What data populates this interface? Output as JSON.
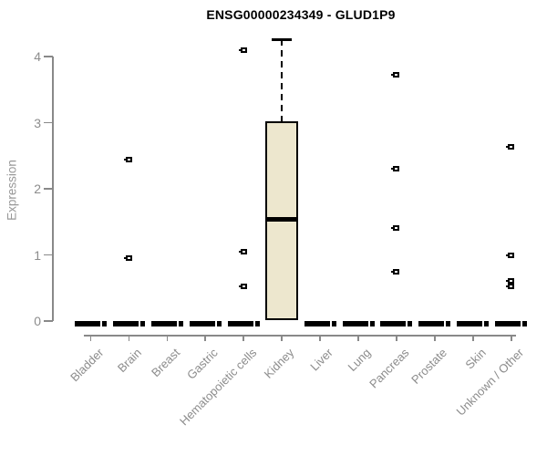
{
  "title": "ENSG00000234349 - GLUD1P9",
  "colors": {
    "box_fill": "#EDE7CE",
    "box_border": "#000000",
    "axis": "#898989",
    "tick_label": "#8C8C8C",
    "title_color": "#000000"
  },
  "chart_data": {
    "type": "boxplot",
    "title": "ENSG00000234349 - GLUD1P9",
    "xlabel": "",
    "ylabel": "Expression",
    "ylim": [
      0,
      4.3
    ],
    "y_ticks": [
      0,
      1,
      2,
      3,
      4
    ],
    "grid": false,
    "legend": "none",
    "categories": [
      "Bladder",
      "Brain",
      "Breast",
      "Gastric",
      "Hematopoietic cells",
      "Kidney",
      "Liver",
      "Lung",
      "Pancreas",
      "Prostate",
      "Skin",
      "Unknown / Other"
    ],
    "groups": [
      {
        "category": "Bladder",
        "q1": 0,
        "median": 0,
        "q3": 0,
        "whisker_low": 0,
        "whisker_high": 0,
        "outliers": []
      },
      {
        "category": "Brain",
        "q1": 0,
        "median": 0,
        "q3": 0,
        "whisker_low": 0,
        "whisker_high": 0,
        "outliers": [
          2.44,
          0.95
        ]
      },
      {
        "category": "Breast",
        "q1": 0,
        "median": 0,
        "q3": 0,
        "whisker_low": 0,
        "whisker_high": 0,
        "outliers": []
      },
      {
        "category": "Gastric",
        "q1": 0,
        "median": 0,
        "q3": 0,
        "whisker_low": 0,
        "whisker_high": 0,
        "outliers": []
      },
      {
        "category": "Hematopoietic cells",
        "q1": 0,
        "median": 0,
        "q3": 0,
        "whisker_low": 0,
        "whisker_high": 0,
        "outliers": [
          4.1,
          1.05,
          0.52
        ]
      },
      {
        "category": "Kidney",
        "q1": 0.02,
        "median": 1.54,
        "q3": 3.02,
        "whisker_low": 0.02,
        "whisker_high": 4.26,
        "outliers": []
      },
      {
        "category": "Liver",
        "q1": 0,
        "median": 0,
        "q3": 0,
        "whisker_low": 0,
        "whisker_high": 0,
        "outliers": []
      },
      {
        "category": "Lung",
        "q1": 0,
        "median": 0,
        "q3": 0,
        "whisker_low": 0,
        "whisker_high": 0,
        "outliers": []
      },
      {
        "category": "Pancreas",
        "q1": 0,
        "median": 0,
        "q3": 0,
        "whisker_low": 0,
        "whisker_high": 0,
        "outliers": [
          3.72,
          2.31,
          1.41,
          0.75
        ]
      },
      {
        "category": "Prostate",
        "q1": 0,
        "median": 0,
        "q3": 0,
        "whisker_low": 0,
        "whisker_high": 0,
        "outliers": []
      },
      {
        "category": "Skin",
        "q1": 0,
        "median": 0,
        "q3": 0,
        "whisker_low": 0,
        "whisker_high": 0,
        "outliers": []
      },
      {
        "category": "Unknown / Other",
        "q1": 0,
        "median": 0,
        "q3": 0,
        "whisker_low": 0,
        "whisker_high": 0,
        "outliers": [
          2.63,
          0.99,
          0.61,
          0.52
        ]
      }
    ]
  }
}
